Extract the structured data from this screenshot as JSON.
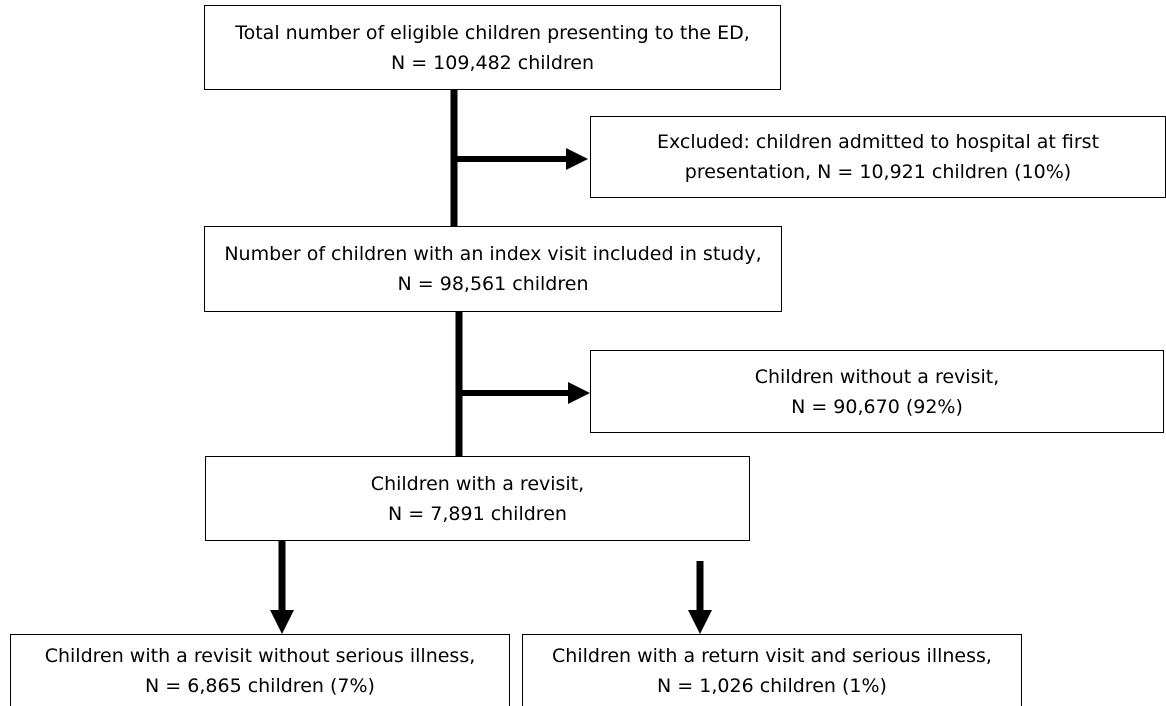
{
  "nodes": {
    "total": {
      "line1": "Total number of eligible children presenting to the ED,",
      "line2": "N = 109,482 children"
    },
    "excluded": {
      "line1": "Excluded: children admitted to hospital at first",
      "line2": "presentation, N = 10,921 children (10%)"
    },
    "index": {
      "line1": "Number of children with an index visit included in study,",
      "line2": "N = 98,561 children"
    },
    "no_revisit": {
      "line1": "Children without a revisit,",
      "line2": "N = 90,670 (92%)"
    },
    "revisit": {
      "line1": "Children with a revisit,",
      "line2": "N = 7,891 children"
    },
    "no_serious": {
      "line1": "Children with a revisit without serious illness,",
      "line2": "N = 6,865 children (7%)"
    },
    "serious": {
      "line1": "Children with a return visit and serious illness,",
      "line2": "N = 1,026 children (1%)"
    }
  },
  "colors": {
    "stroke": "#000000",
    "background": "#ffffff"
  }
}
